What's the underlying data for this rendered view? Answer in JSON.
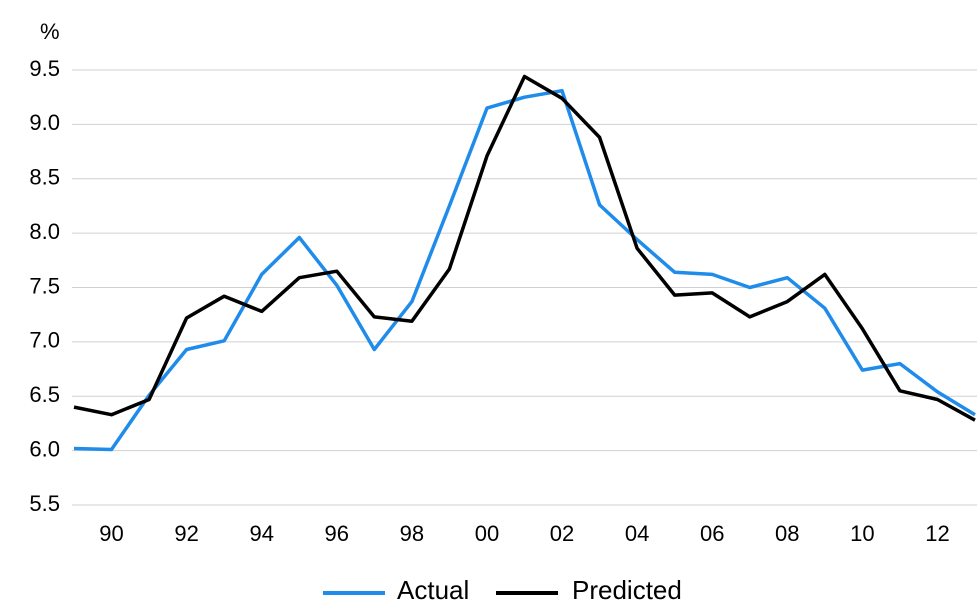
{
  "chart_data": {
    "type": "line",
    "y_unit": "%",
    "categories": [
      null,
      "90",
      null,
      "92",
      null,
      "94",
      null,
      "96",
      null,
      "98",
      null,
      "00",
      null,
      "02",
      null,
      "04",
      null,
      "06",
      null,
      "08",
      null,
      "10",
      null,
      "12",
      null
    ],
    "series": [
      {
        "name": "Actual",
        "color": "#1f8ceb",
        "values": [
          6.02,
          6.01,
          6.51,
          6.93,
          7.01,
          7.62,
          7.96,
          7.52,
          6.93,
          7.37,
          8.25,
          9.15,
          9.25,
          9.31,
          8.26,
          7.94,
          7.64,
          7.62,
          7.5,
          7.59,
          7.31,
          6.74,
          6.8,
          6.54,
          6.33
        ]
      },
      {
        "name": "Predicted",
        "color": "#000000",
        "values": [
          6.4,
          6.33,
          6.47,
          7.22,
          7.42,
          7.28,
          7.59,
          7.65,
          7.23,
          7.19,
          7.67,
          8.71,
          9.44,
          9.24,
          8.88,
          7.86,
          7.43,
          7.45,
          7.23,
          7.37,
          7.62,
          7.12,
          6.55,
          6.47,
          6.28
        ]
      }
    ],
    "ylim": [
      5.5,
      9.5
    ],
    "yticks": [
      5.5,
      {
        "value": 6,
        "label": "6.0"
      },
      6.5,
      {
        "value": 7,
        "label": "7.0"
      },
      7.5,
      {
        "value": 8,
        "label": "8.0"
      },
      8.5,
      {
        "value": 9,
        "label": "9.0"
      },
      9.5
    ],
    "grid": true
  }
}
